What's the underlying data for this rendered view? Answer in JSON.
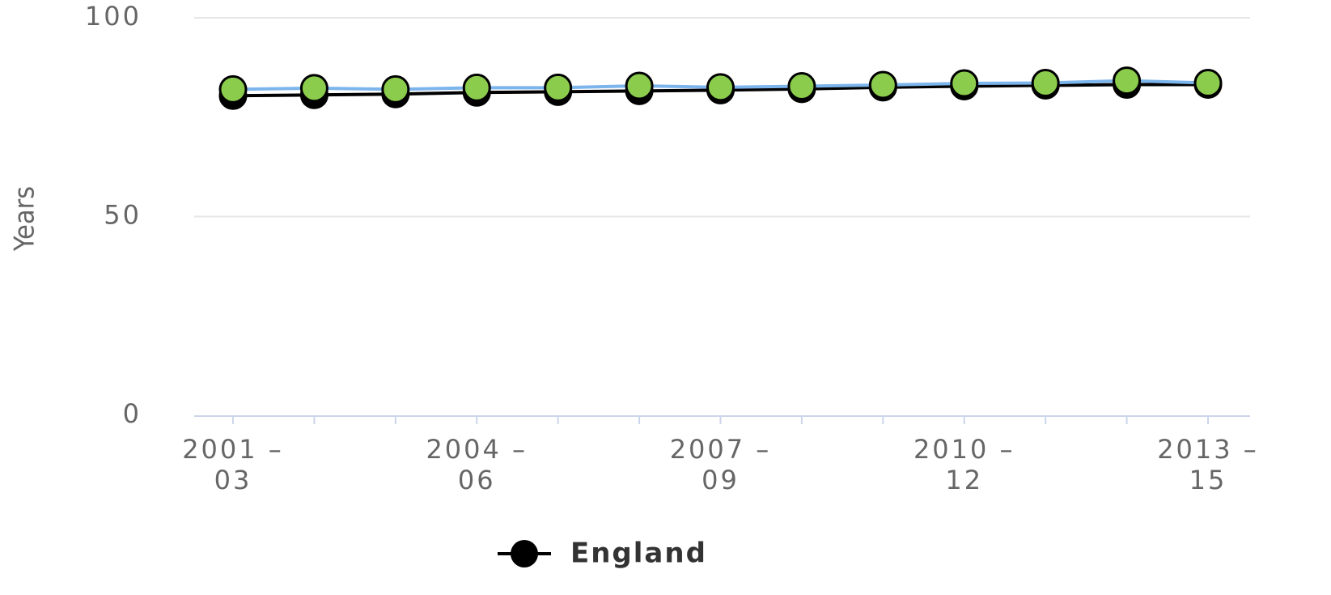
{
  "chart_data": {
    "type": "line",
    "y_label": "Years",
    "categories": [
      "2001 – 03",
      null,
      null,
      "2004 – 06",
      null,
      null,
      "2007 – 09",
      null,
      null,
      "2010 – 12",
      null,
      null,
      "2013 – 15"
    ],
    "series": [
      {
        "name": "England",
        "color": "#000000",
        "marker_color": "#000000",
        "values": [
          80.4,
          80.6,
          80.8,
          81.2,
          81.4,
          81.6,
          81.8,
          82.1,
          82.5,
          82.8,
          83.0,
          83.2,
          83.2
        ]
      },
      {
        "color": "#7cb5ec",
        "marker_color": "#8bcc4d",
        "values": [
          82.0,
          82.3,
          82.0,
          82.4,
          82.4,
          82.9,
          82.5,
          82.8,
          83.1,
          83.5,
          83.6,
          84.2,
          83.6
        ]
      }
    ],
    "ylim": [
      0,
      100
    ],
    "yticks": [
      0,
      50,
      100
    ],
    "grid": true,
    "legend": "bottom"
  }
}
